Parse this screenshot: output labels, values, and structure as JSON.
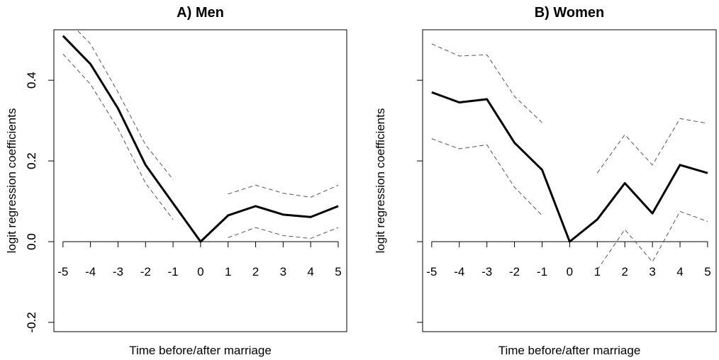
{
  "chart_data": [
    {
      "type": "line",
      "title": "A) Men",
      "xlabel": "Time before/after marriage",
      "ylabel": "logit regression coefficients",
      "x": [
        -5,
        -4,
        -3,
        -2,
        -1,
        0,
        1,
        2,
        3,
        4,
        5
      ],
      "series": [
        {
          "color": "#000000",
          "style": "solid",
          "width": 3,
          "values": [
            0.51,
            0.44,
            0.33,
            0.19,
            0.095,
            0,
            0.065,
            0.088,
            0.067,
            0.061,
            0.088
          ]
        },
        {
          "color": "#555555",
          "style": "dashed",
          "width": 1,
          "values": [
            0.56,
            0.49,
            0.37,
            0.24,
            0.154,
            null,
            0.118,
            0.14,
            0.12,
            0.11,
            0.14
          ]
        },
        {
          "color": "#555555",
          "style": "dashed",
          "width": 1,
          "values": [
            0.465,
            0.39,
            0.28,
            0.145,
            0.055,
            null,
            0.01,
            0.035,
            0.015,
            0.008,
            0.035
          ]
        }
      ],
      "xlim": [
        -5.33,
        5.31
      ],
      "ylim": [
        -0.223,
        0.525
      ],
      "xticks": [
        -5,
        -4,
        -3,
        -2,
        -1,
        0,
        1,
        2,
        3,
        4,
        5
      ],
      "yticks": [
        -0.2,
        {
          "value": 0,
          "label": "0.0"
        },
        0.2,
        0.4
      ]
    },
    {
      "type": "line",
      "title": "B) Women",
      "xlabel": "Time before/after marriage",
      "ylabel": "logit regression coefficients",
      "x": [
        -5,
        -4,
        -3,
        -2,
        -1,
        0,
        1,
        2,
        3,
        4,
        5
      ],
      "series": [
        {
          "color": "#000000",
          "style": "solid",
          "width": 3,
          "values": [
            0.37,
            0.345,
            0.353,
            0.245,
            0.178,
            0,
            0.055,
            0.145,
            0.07,
            0.19,
            0.17
          ]
        },
        {
          "color": "#555555",
          "style": "dashed",
          "width": 1,
          "values": [
            0.49,
            0.46,
            0.463,
            0.36,
            0.295,
            null,
            0.17,
            0.265,
            0.19,
            0.305,
            0.293
          ]
        },
        {
          "color": "#555555",
          "style": "dashed",
          "width": 1,
          "values": [
            0.255,
            0.23,
            0.24,
            0.135,
            0.065,
            null,
            -0.07,
            0.03,
            -0.05,
            0.075,
            0.05
          ]
        }
      ],
      "xlim": [
        -5.33,
        5.31
      ],
      "ylim": [
        -0.223,
        0.525
      ],
      "xticks": [
        -5,
        -4,
        -3,
        -2,
        -1,
        0,
        1,
        2,
        3,
        4,
        5
      ],
      "yticks": [
        -0.2,
        {
          "value": 0,
          "label": "0.0"
        },
        0.2,
        0.4
      ]
    }
  ]
}
